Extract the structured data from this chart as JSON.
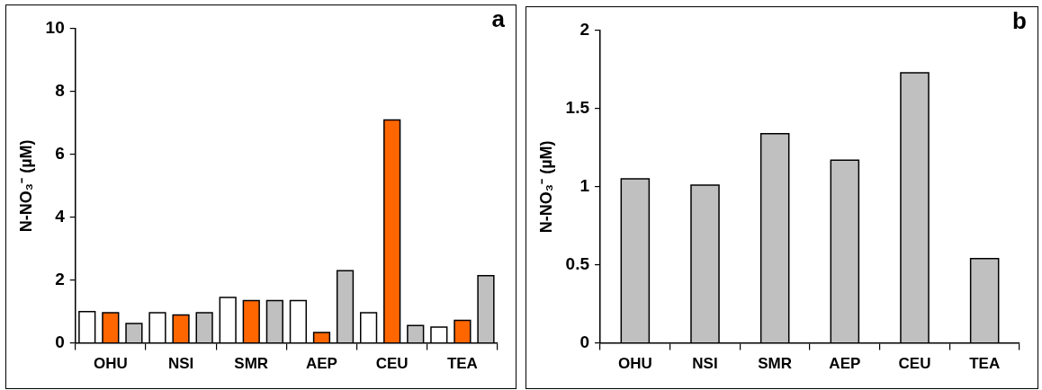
{
  "chart_data": [
    {
      "type": "bar",
      "ylabel": "N-NO₃⁻ (µM)",
      "annotations": [
        "a"
      ],
      "categories": [
        "OHU",
        "NSI",
        "SMR",
        "AEP",
        "CEU",
        "TEA"
      ],
      "series": [
        {
          "color": "#ffffff",
          "values": [
            1.0,
            0.96,
            1.45,
            1.35,
            0.96,
            0.5
          ]
        },
        {
          "color": "#ff6600",
          "values": [
            0.96,
            0.89,
            1.35,
            0.33,
            7.1,
            0.72
          ]
        },
        {
          "color": "#c0c0c0",
          "values": [
            0.62,
            0.96,
            1.35,
            2.3,
            0.55,
            2.14
          ]
        }
      ],
      "ylim": [
        0,
        10
      ],
      "yticks": [
        0,
        2,
        4,
        6,
        8,
        10
      ],
      "grid": false,
      "legend": false
    },
    {
      "type": "bar",
      "ylabel": "N-NO₃⁻ (µM)",
      "annotations": [
        "b"
      ],
      "categories": [
        "OHU",
        "NSI",
        "SMR",
        "AEP",
        "CEU",
        "TEA"
      ],
      "series": [
        {
          "color": "#c0c0c0",
          "values": [
            1.05,
            1.01,
            1.34,
            1.17,
            1.73,
            0.54
          ]
        }
      ],
      "ylim": [
        0,
        2
      ],
      "yticks": [
        0,
        0.5,
        1,
        1.5,
        2
      ],
      "grid": false,
      "legend": false
    }
  ]
}
